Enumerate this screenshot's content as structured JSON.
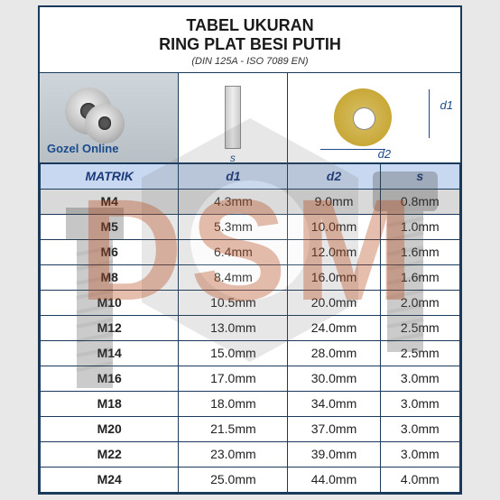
{
  "title": {
    "line1": "TABEL UKURAN",
    "line2": "RING PLAT BESI PUTIH",
    "sub": "(DIN 125A - ISO 7089 EN)"
  },
  "watermark": {
    "text": "DSM",
    "brand": "Gozel Online"
  },
  "diagram_labels": {
    "d1": "d1",
    "d2": "d2",
    "s": "s"
  },
  "headers": {
    "matrik": "MATRIK",
    "d1": "d1",
    "d2": "d2",
    "s": "s"
  },
  "rows": [
    {
      "matrik": "M4",
      "d1": "4.3mm",
      "d2": "9.0mm",
      "s": "0.8mm",
      "highlight": true
    },
    {
      "matrik": "M5",
      "d1": "5.3mm",
      "d2": "10.0mm",
      "s": "1.0mm",
      "highlight": false
    },
    {
      "matrik": "M6",
      "d1": "6.4mm",
      "d2": "12.0mm",
      "s": "1.6mm",
      "highlight": false
    },
    {
      "matrik": "M8",
      "d1": "8.4mm",
      "d2": "16.0mm",
      "s": "1.6mm",
      "highlight": false
    },
    {
      "matrik": "M10",
      "d1": "10.5mm",
      "d2": "20.0mm",
      "s": "2.0mm",
      "highlight": false
    },
    {
      "matrik": "M12",
      "d1": "13.0mm",
      "d2": "24.0mm",
      "s": "2.5mm",
      "highlight": false
    },
    {
      "matrik": "M14",
      "d1": "15.0mm",
      "d2": "28.0mm",
      "s": "2.5mm",
      "highlight": false
    },
    {
      "matrik": "M16",
      "d1": "17.0mm",
      "d2": "30.0mm",
      "s": "3.0mm",
      "highlight": false
    },
    {
      "matrik": "M18",
      "d1": "18.0mm",
      "d2": "34.0mm",
      "s": "3.0mm",
      "highlight": false
    },
    {
      "matrik": "M20",
      "d1": "21.5mm",
      "d2": "37.0mm",
      "s": "3.0mm",
      "highlight": false
    },
    {
      "matrik": "M22",
      "d1": "23.0mm",
      "d2": "39.0mm",
      "s": "3.0mm",
      "highlight": false
    },
    {
      "matrik": "M24",
      "d1": "25.0mm",
      "d2": "44.0mm",
      "s": "4.0mm",
      "highlight": false
    }
  ],
  "styling": {
    "border_color": "#1a3a5c",
    "header_bg": "#c8d8f0",
    "header_fg": "#1a3a7a",
    "highlight_bg": "#d9d9d9",
    "watermark_color": "rgba(180,70,20,0.35)",
    "body_bg": "#e8e8e8",
    "frame_bg": "#ffffff",
    "title_fontsize_pt": 14,
    "cell_fontsize_pt": 11
  }
}
